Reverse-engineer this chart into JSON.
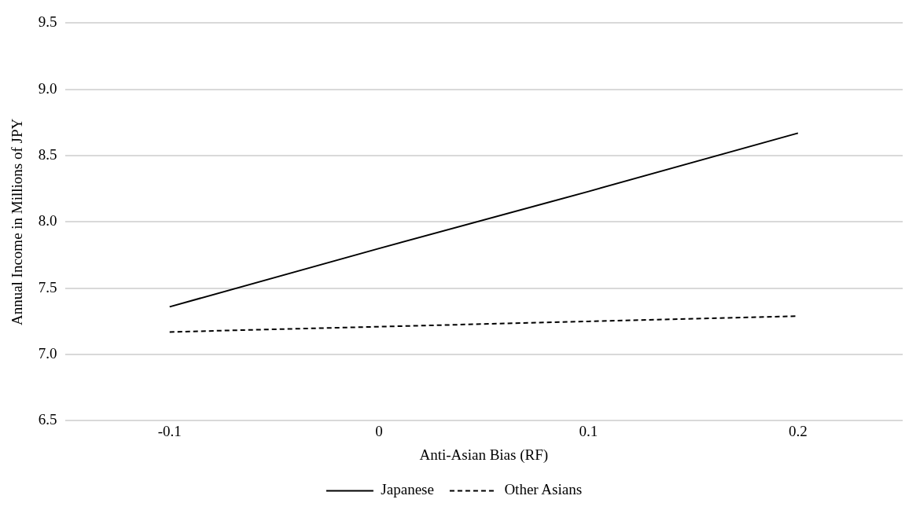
{
  "chart_data": {
    "type": "line",
    "xlabel": "Anti-Asian Bias (RF)",
    "ylabel": "Annual Income in Millions of JPY",
    "categories": [
      "-0.1",
      "0",
      "0.1",
      "0.2"
    ],
    "ylim": [
      6.5,
      9.5
    ],
    "yticks": [
      6.5,
      {
        "value": 7,
        "label": "7.0"
      },
      7.5,
      {
        "value": 8,
        "label": "8.0"
      },
      8.5,
      {
        "value": 9,
        "label": "9.0"
      },
      9.5
    ],
    "grid": "y",
    "legend": "bottom",
    "marker": "none",
    "series": [
      {
        "name": "Japanese",
        "color": "#000000",
        "values": [
          7.36,
          7.8,
          8.23,
          8.67
        ],
        "line_style": "solid"
      },
      {
        "name": "Other Asians",
        "color": "#000000",
        "values": [
          7.17,
          7.21,
          7.25,
          7.29
        ],
        "line_style": "dashed"
      }
    ]
  }
}
